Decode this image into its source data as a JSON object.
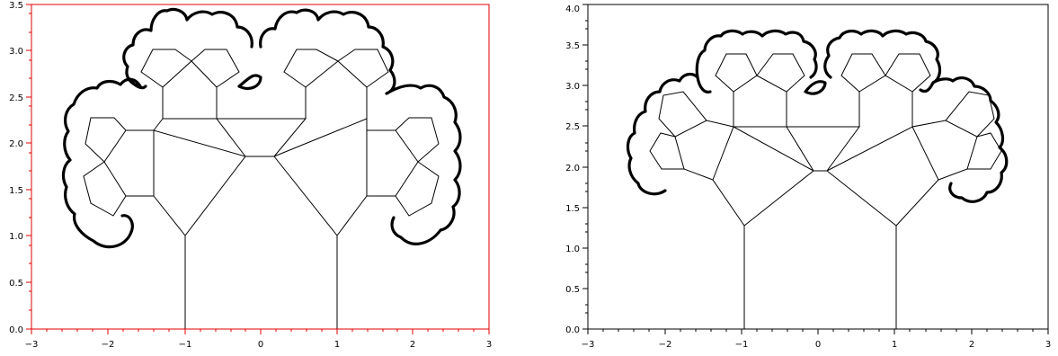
{
  "chart_data": [
    {
      "type": "line",
      "title": "",
      "xlabel": "",
      "ylabel": "",
      "xlim": [
        -3,
        3
      ],
      "ylim": [
        0,
        3.5
      ],
      "x_ticks": [
        "−3",
        "−2",
        "−1",
        "0",
        "1",
        "2",
        "3"
      ],
      "y_ticks": [
        "0.0",
        "0.5",
        "1.0",
        "1.5",
        "2.0",
        "2.5",
        "3.0",
        "3.5"
      ],
      "axis_color": "#e00000",
      "line_color": "#000000",
      "grid": false,
      "series": [
        {
          "points": [
            [
              -1,
              0
            ],
            [
              -1,
              1
            ],
            [
              1,
              0
            ],
            [
              1,
              1
            ],
            [
              -1,
              1
            ],
            [
              -1.4,
              1.42
            ],
            [
              -1.4,
              2.25
            ],
            [
              -0.25,
              1.82
            ],
            [
              -1,
              1
            ],
            [
              1,
              1
            ],
            [
              0.25,
              1.82
            ],
            [
              1.4,
              2.25
            ],
            [
              1.4,
              1.42
            ],
            [
              1,
              1
            ],
            [
              -0.9,
              2.25
            ],
            [
              -0.25,
              1.82
            ],
            [
              0.25,
              1.82
            ],
            [
              0.6,
              2.25
            ],
            [
              1.4,
              2.25
            ],
            [
              1.4,
              1.42
            ]
          ]
        }
      ]
    },
    {
      "type": "line",
      "title": "",
      "xlabel": "",
      "ylabel": "",
      "xlim": [
        -3,
        3
      ],
      "ylim": [
        0,
        4
      ],
      "x_ticks": [
        "−3",
        "−2",
        "−1",
        "0",
        "1",
        "2",
        "3"
      ],
      "y_ticks": [
        "0.0",
        "0.5",
        "1.0",
        "1.5",
        "2.0",
        "2.5",
        "3.0",
        "3.5",
        "4.0"
      ],
      "axis_color": "#000000",
      "line_color": "#000000",
      "grid": false,
      "series": [
        {
          "points": [
            [
              -1,
              0
            ],
            [
              -1,
              1.25
            ],
            [
              1,
              0
            ],
            [
              1,
              1.25
            ],
            [
              -1,
              1.25
            ],
            [
              -1.4,
              1.82
            ],
            [
              -1.1,
              2.48
            ],
            [
              -0.05,
              1.92
            ],
            [
              -1,
              1.25
            ],
            [
              1,
              1.25
            ],
            [
              0.05,
              1.92
            ],
            [
              1.1,
              2.48
            ],
            [
              1.4,
              1.82
            ],
            [
              1,
              1.25
            ],
            [
              -0.45,
              2.48
            ],
            [
              -0.05,
              1.92
            ],
            [
              0.05,
              1.92
            ],
            [
              0.45,
              2.48
            ],
            [
              1.1,
              2.48
            ],
            [
              1.4,
              1.82
            ]
          ]
        }
      ]
    }
  ]
}
